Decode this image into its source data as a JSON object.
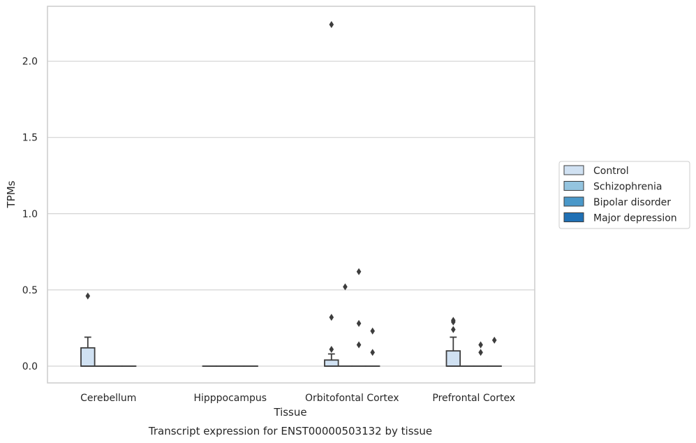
{
  "caption": "Transcript expression for ENST00000503132 by tissue",
  "chart_data": {
    "type": "box",
    "xlabel": "Tissue",
    "ylabel": "TPMs",
    "ylim": [
      -0.11,
      2.36
    ],
    "yticks": [
      0.0,
      0.5,
      1.0,
      1.5,
      2.0
    ],
    "ytick_labels": [
      "0.0",
      "0.5",
      "1.0",
      "1.5",
      "2.0"
    ],
    "categories": [
      "Cerebellum",
      "Hipppocampus",
      "Orbitofontal Cortex",
      "Prefrontal Cortex"
    ],
    "grid": "horizontal",
    "legend_position": "right",
    "series": [
      {
        "name": "Control",
        "color": "#d0e1f2",
        "boxes": [
          {
            "q1": 0.0,
            "median": 0.0,
            "q3": 0.12,
            "whisker_low": 0.0,
            "whisker_high": 0.19,
            "outliers": [
              0.46
            ]
          },
          {
            "q1": 0.0,
            "median": 0.0,
            "q3": 0.0,
            "whisker_low": 0.0,
            "whisker_high": 0.0,
            "outliers": []
          },
          {
            "q1": 0.0,
            "median": 0.0,
            "q3": 0.04,
            "whisker_low": 0.0,
            "whisker_high": 0.08,
            "outliers": [
              0.11,
              0.32,
              2.24
            ]
          },
          {
            "q1": 0.0,
            "median": 0.0,
            "q3": 0.1,
            "whisker_low": 0.0,
            "whisker_high": 0.19,
            "outliers": [
              0.24,
              0.29,
              0.3
            ]
          }
        ]
      },
      {
        "name": "Schizophrenia",
        "color": "#94c4df",
        "boxes": [
          {
            "q1": 0.0,
            "median": 0.0,
            "q3": 0.0,
            "whisker_low": 0.0,
            "whisker_high": 0.0,
            "outliers": []
          },
          {
            "q1": 0.0,
            "median": 0.0,
            "q3": 0.0,
            "whisker_low": 0.0,
            "whisker_high": 0.0,
            "outliers": []
          },
          {
            "q1": 0.0,
            "median": 0.0,
            "q3": 0.0,
            "whisker_low": 0.0,
            "whisker_high": 0.0,
            "outliers": [
              0.52
            ]
          },
          {
            "q1": 0.0,
            "median": 0.0,
            "q3": 0.0,
            "whisker_low": 0.0,
            "whisker_high": 0.0,
            "outliers": []
          }
        ]
      },
      {
        "name": "Bipolar disorder",
        "color": "#4a98c9",
        "boxes": [
          {
            "q1": 0.0,
            "median": 0.0,
            "q3": 0.0,
            "whisker_low": 0.0,
            "whisker_high": 0.0,
            "outliers": []
          },
          {
            "q1": 0.0,
            "median": 0.0,
            "q3": 0.0,
            "whisker_low": 0.0,
            "whisker_high": 0.0,
            "outliers": []
          },
          {
            "q1": 0.0,
            "median": 0.0,
            "q3": 0.0,
            "whisker_low": 0.0,
            "whisker_high": 0.0,
            "outliers": [
              0.14,
              0.28,
              0.62
            ]
          },
          {
            "q1": 0.0,
            "median": 0.0,
            "q3": 0.0,
            "whisker_low": 0.0,
            "whisker_high": 0.0,
            "outliers": [
              0.09,
              0.14
            ]
          }
        ]
      },
      {
        "name": "Major depression",
        "color": "#2070b4",
        "boxes": [
          {
            "q1": 0.0,
            "median": 0.0,
            "q3": 0.0,
            "whisker_low": 0.0,
            "whisker_high": 0.0,
            "outliers": []
          },
          {
            "q1": 0.0,
            "median": 0.0,
            "q3": 0.0,
            "whisker_low": 0.0,
            "whisker_high": 0.0,
            "outliers": []
          },
          {
            "q1": 0.0,
            "median": 0.0,
            "q3": 0.0,
            "whisker_low": 0.0,
            "whisker_high": 0.0,
            "outliers": [
              0.09,
              0.23
            ]
          },
          {
            "q1": 0.0,
            "median": 0.0,
            "q3": 0.0,
            "whisker_low": 0.0,
            "whisker_high": 0.0,
            "outliers": [
              0.17
            ]
          }
        ]
      }
    ]
  }
}
